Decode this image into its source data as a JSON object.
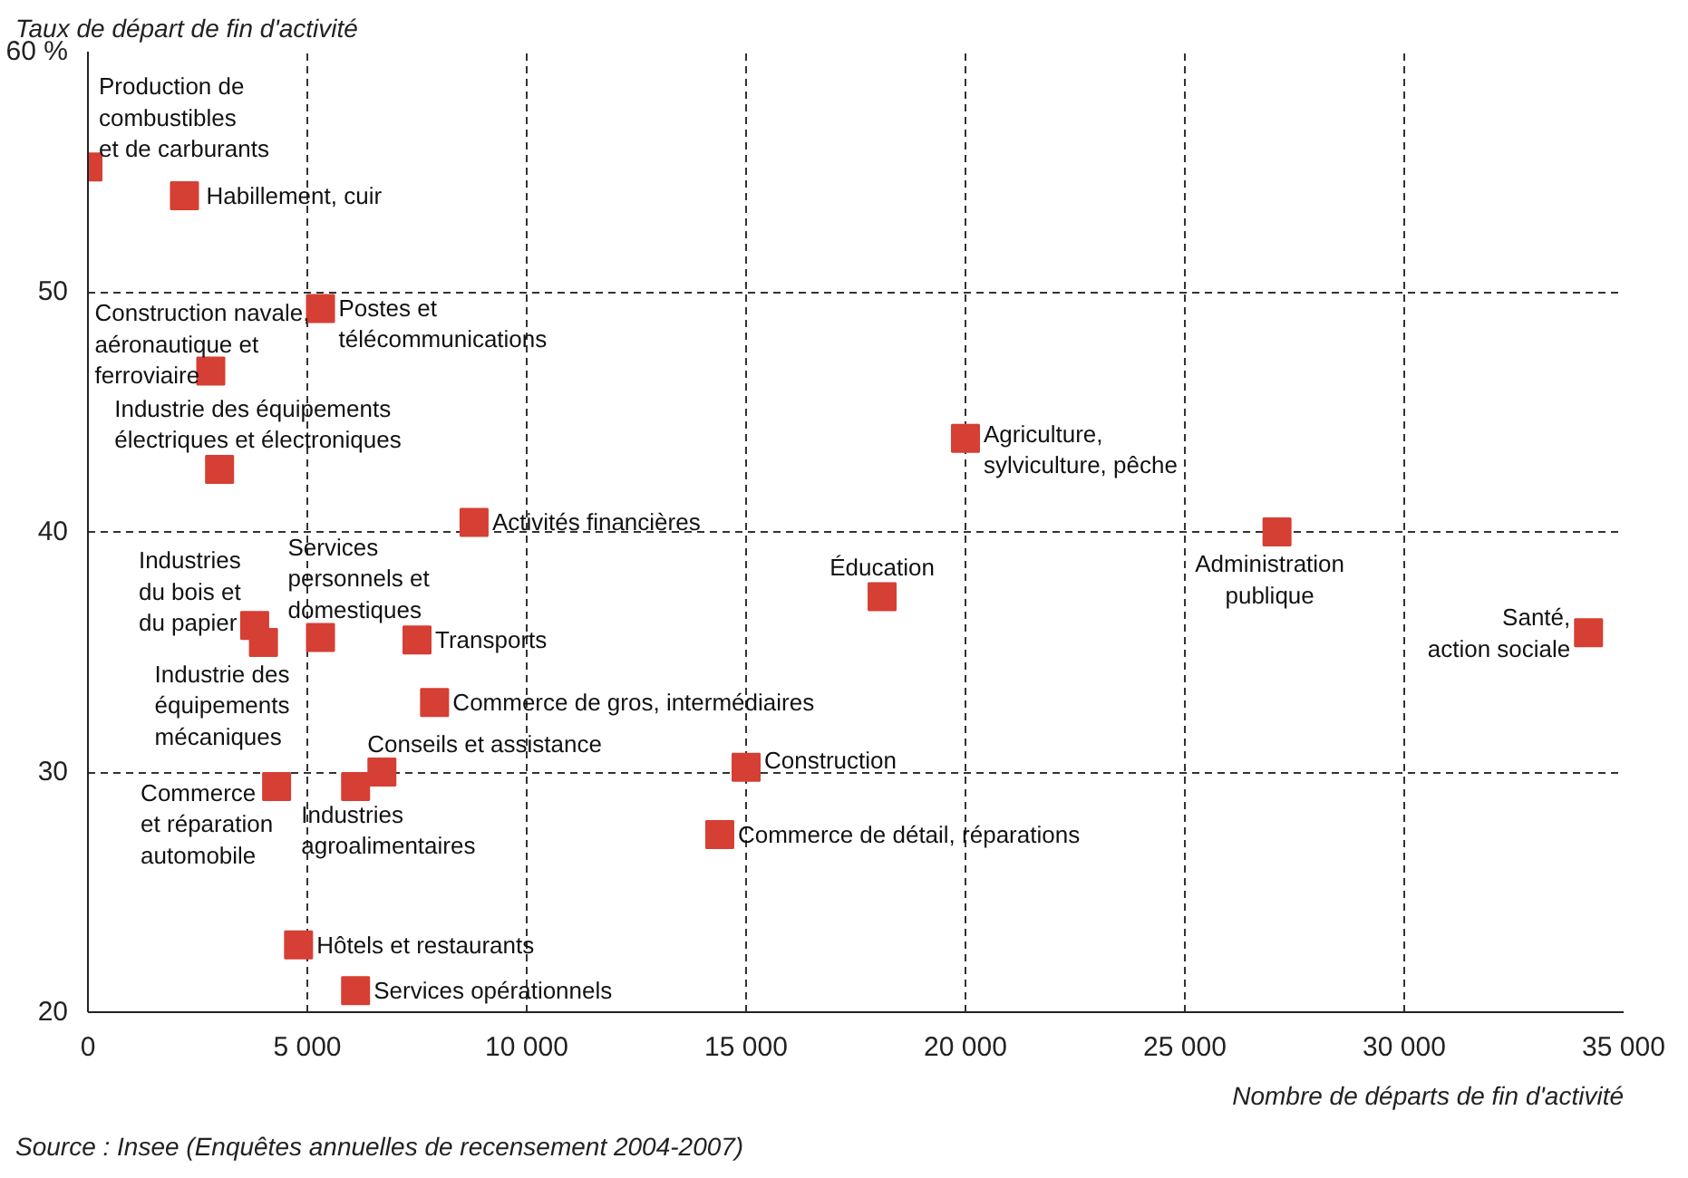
{
  "chart_data": {
    "type": "scatter",
    "xlabel": "Nombre de départs de fin d'activité",
    "ylabel": "Taux de départ de fin d'activité",
    "x": [
      0,
      2200,
      2800,
      5300,
      3000,
      20000,
      8800,
      27100,
      18100,
      34200,
      3800,
      4000,
      5300,
      7500,
      7900,
      6700,
      15000,
      4300,
      6100,
      14400,
      4800,
      6100
    ],
    "series": [
      {
        "color": "#d63f33",
        "values": [
          55.2,
          54.0,
          46.7,
          49.3,
          42.6,
          43.9,
          40.4,
          40.0,
          37.3,
          35.8,
          36.1,
          35.4,
          35.6,
          35.5,
          32.9,
          30.0,
          30.2,
          29.4,
          29.4,
          27.4,
          22.8,
          20.9
        ]
      }
    ],
    "marker": "square",
    "grid": true,
    "xlim": [
      0,
      35000
    ],
    "ylim": [
      20,
      60
    ],
    "xticks": [
      0,
      {
        "value": 5000,
        "label": "5 000"
      },
      {
        "value": 10000,
        "label": "10 000"
      },
      {
        "value": 15000,
        "label": "15 000"
      },
      {
        "value": 20000,
        "label": "20 000"
      },
      {
        "value": 25000,
        "label": "25 000"
      },
      {
        "value": 30000,
        "label": "30 000"
      },
      {
        "value": 35000,
        "label": "35 000"
      }
    ],
    "yticks": [
      20,
      30,
      40,
      50,
      {
        "value": 60,
        "label": "60 %"
      }
    ],
    "annotations": [
      {
        "text": "Production de\ncombustibles\net de carburants",
        "x": 0,
        "y": 55.2
      },
      {
        "text": "Habillement, cuir",
        "x": 2200,
        "y": 54.0
      },
      {
        "text": "Construction navale,\naéronautique et\nferroviaire",
        "x": 2800,
        "y": 46.7
      },
      {
        "text": "Postes et\ntélécommunications",
        "x": 5300,
        "y": 49.3
      },
      {
        "text": "Industrie des équipements\nélectriques et électroniques",
        "x": 3000,
        "y": 42.6
      },
      {
        "text": "Agriculture,\nsylviculture, pêche",
        "x": 20000,
        "y": 43.9
      },
      {
        "text": "Activités financières",
        "x": 8800,
        "y": 40.4
      },
      {
        "text": "Administration\npublique",
        "x": 27100,
        "y": 40.0
      },
      {
        "text": "Éducation",
        "x": 18100,
        "y": 37.3
      },
      {
        "text": "Santé,\naction sociale",
        "x": 34200,
        "y": 35.8
      },
      {
        "text": "Industries\ndu bois et\ndu papier",
        "x": 3800,
        "y": 36.1
      },
      {
        "text": "Industrie des\néquipements\nmécaniques",
        "x": 4000,
        "y": 35.4
      },
      {
        "text": "Services\npersonnels et\ndomestiques",
        "x": 5300,
        "y": 35.6
      },
      {
        "text": "Transports",
        "x": 7500,
        "y": 35.5
      },
      {
        "text": "Commerce de gros, intermédiaires",
        "x": 7900,
        "y": 32.9
      },
      {
        "text": "Conseils et assistance",
        "x": 6700,
        "y": 30.0
      },
      {
        "text": "Construction",
        "x": 15000,
        "y": 30.2
      },
      {
        "text": "Commerce\net réparation\nautomobile",
        "x": 4300,
        "y": 29.4
      },
      {
        "text": "Industries\nagroalimentaires",
        "x": 6100,
        "y": 29.4
      },
      {
        "text": "Commerce de détail, réparations",
        "x": 14400,
        "y": 27.4
      },
      {
        "text": "Hôtels et restaurants",
        "x": 4800,
        "y": 22.8
      },
      {
        "text": "Services opérationnels",
        "x": 6100,
        "y": 20.9
      },
      "Source : Insee (Enquêtes annuelles de recensement 2004-2007)"
    ]
  }
}
